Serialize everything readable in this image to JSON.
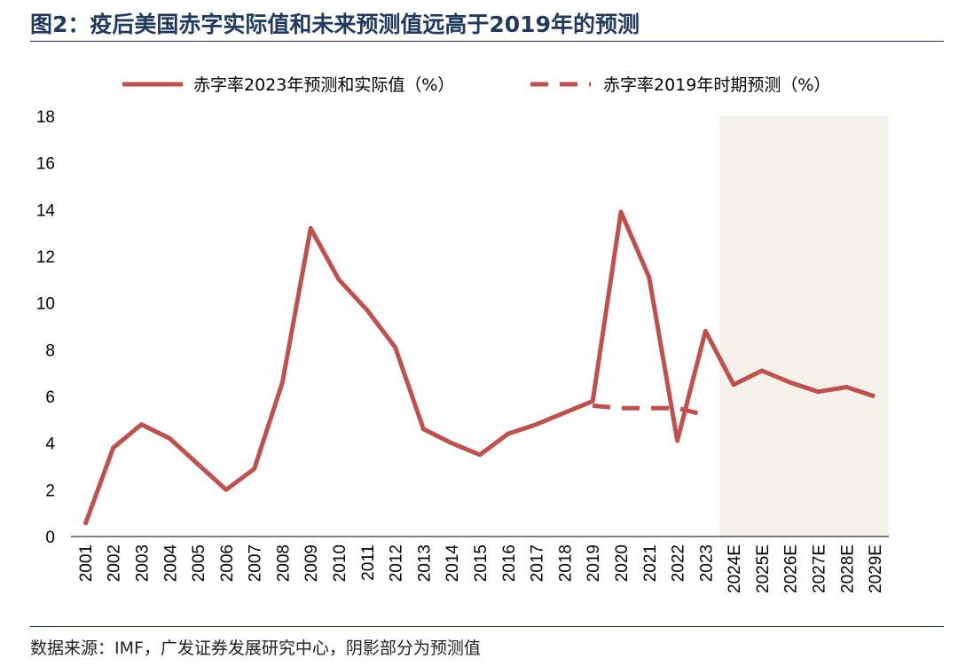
{
  "figure": {
    "title": "图2：疫后美国赤字实际值和未来预测值远高于2019年的预测",
    "source": "数据来源：IMF，广发证券发展研究中心，阴影部分为预测值"
  },
  "colors": {
    "series": "#c0504d",
    "shade": "#f3f1ea",
    "title": "#1f3a5c"
  },
  "chart_data": {
    "type": "line",
    "categories": [
      "2001",
      "2002",
      "2003",
      "2004",
      "2005",
      "2006",
      "2007",
      "2008",
      "2009",
      "2010",
      "2011",
      "2012",
      "2013",
      "2014",
      "2015",
      "2016",
      "2017",
      "2018",
      "2019",
      "2020",
      "2021",
      "2022",
      "2023",
      "2024E",
      "2025E",
      "2026E",
      "2027E",
      "2028E",
      "2029E"
    ],
    "ylim": [
      0,
      18
    ],
    "yticks": [
      0,
      2,
      4,
      6,
      8,
      10,
      12,
      14,
      16,
      18
    ],
    "legend_position": "top",
    "shaded_range": [
      "2024E",
      "2029E"
    ],
    "series": [
      {
        "name": "赤字率2023年预测和实际值（%）",
        "style": "solid",
        "values": [
          0.5,
          3.8,
          4.8,
          4.2,
          3.1,
          2.0,
          2.9,
          6.6,
          13.2,
          11.0,
          9.7,
          8.1,
          4.6,
          4.0,
          3.5,
          4.4,
          4.8,
          5.3,
          5.8,
          13.9,
          11.1,
          4.1,
          8.8,
          6.5,
          7.1,
          6.6,
          6.2,
          6.4,
          6.0
        ]
      },
      {
        "name": "赤字率2019年时期预测（%）",
        "style": "dashed",
        "values": [
          null,
          null,
          null,
          null,
          null,
          null,
          null,
          null,
          null,
          null,
          null,
          null,
          null,
          null,
          null,
          null,
          null,
          null,
          5.6,
          5.5,
          5.5,
          5.5,
          5.2,
          null,
          null,
          null,
          null,
          null,
          null
        ]
      }
    ]
  }
}
